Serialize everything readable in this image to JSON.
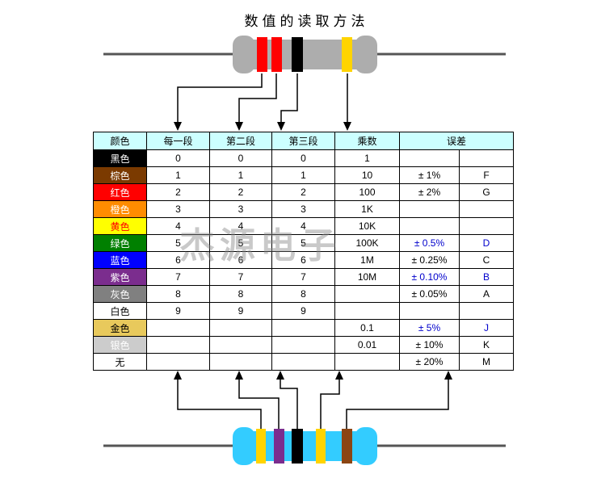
{
  "title": "数值的读取方法",
  "watermark": "杰源电子",
  "colors": {
    "header_bg": "#CCFFFF",
    "border": "#000000",
    "tolerance_blue": "#0000CC"
  },
  "table": {
    "headers": {
      "color": "颜色",
      "band1": "每一段",
      "band2": "第二段",
      "band3": "第三段",
      "multiplier": "乘数",
      "tolerance": "误差"
    },
    "rows": [
      {
        "label": "黑色",
        "swatch": "#000000",
        "text_color": "#FFFFFF",
        "band1": "0",
        "band2": "0",
        "band3": "0",
        "multiplier": "1",
        "tolerance": "",
        "code": "",
        "tol_color": "#000000"
      },
      {
        "label": "棕色",
        "swatch": "#7B3A00",
        "text_color": "#FFFFFF",
        "band1": "1",
        "band2": "1",
        "band3": "1",
        "multiplier": "10",
        "tolerance": "± 1%",
        "code": "F",
        "tol_color": "#000000"
      },
      {
        "label": "红色",
        "swatch": "#FF0000",
        "text_color": "#FFFFFF",
        "band1": "2",
        "band2": "2",
        "band3": "2",
        "multiplier": "100",
        "tolerance": "± 2%",
        "code": "G",
        "tol_color": "#000000"
      },
      {
        "label": "橙色",
        "swatch": "#FF8C00",
        "text_color": "#FFFFFF",
        "band1": "3",
        "band2": "3",
        "band3": "3",
        "multiplier": "1K",
        "tolerance": "",
        "code": "",
        "tol_color": "#000000"
      },
      {
        "label": "黄色",
        "swatch": "#FFFF00",
        "text_color": "#FF0000",
        "band1": "4",
        "band2": "4",
        "band3": "4",
        "multiplier": "10K",
        "tolerance": "",
        "code": "",
        "tol_color": "#000000"
      },
      {
        "label": "绿色",
        "swatch": "#008000",
        "text_color": "#FFFFFF",
        "band1": "5",
        "band2": "5",
        "band3": "5",
        "multiplier": "100K",
        "tolerance": "± 0.5%",
        "code": "D",
        "tol_color": "#0000CC"
      },
      {
        "label": "蓝色",
        "swatch": "#0000FF",
        "text_color": "#FFFFFF",
        "band1": "6",
        "band2": "6",
        "band3": "6",
        "multiplier": "1M",
        "tolerance": "± 0.25%",
        "code": "C",
        "tol_color": "#000000"
      },
      {
        "label": "紫色",
        "swatch": "#7B2D8E",
        "text_color": "#FFFFFF",
        "band1": "7",
        "band2": "7",
        "band3": "7",
        "multiplier": "10M",
        "tolerance": "± 0.10%",
        "code": "B",
        "tol_color": "#0000CC"
      },
      {
        "label": "灰色",
        "swatch": "#808080",
        "text_color": "#FFFFFF",
        "band1": "8",
        "band2": "8",
        "band3": "8",
        "multiplier": "",
        "tolerance": "± 0.05%",
        "code": "A",
        "tol_color": "#000000"
      },
      {
        "label": "白色",
        "swatch": "#FFFFFF",
        "text_color": "#000000",
        "band1": "9",
        "band2": "9",
        "band3": "9",
        "multiplier": "",
        "tolerance": "",
        "code": "",
        "tol_color": "#000000"
      },
      {
        "label": "金色",
        "swatch": "#E8C95C",
        "text_color": "#000000",
        "band1": "",
        "band2": "",
        "band3": "",
        "multiplier": "0.1",
        "tolerance": "± 5%",
        "code": "J",
        "tol_color": "#0000CC"
      },
      {
        "label": "银色",
        "swatch": "#CCCCCC",
        "text_color": "#FFFFFF",
        "band1": "",
        "band2": "",
        "band3": "",
        "multiplier": "0.01",
        "tolerance": "± 10%",
        "code": "K",
        "tol_color": "#000000"
      },
      {
        "label": "无",
        "swatch": "#FFFFFF",
        "text_color": "#000000",
        "band1": "",
        "band2": "",
        "band3": "",
        "multiplier": "",
        "tolerance": "± 20%",
        "code": "M",
        "tol_color": "#000000"
      }
    ]
  },
  "resistors": {
    "top": {
      "body_color": "#ADADAD",
      "bands": [
        "#FF0000",
        "#FF0000",
        "#000000",
        "#FFD400"
      ]
    },
    "bottom": {
      "body_color": "#33CCFF",
      "bands": [
        "#FFD400",
        "#7B2D8E",
        "#000000",
        "#FFD400",
        "#8B4513"
      ]
    }
  }
}
